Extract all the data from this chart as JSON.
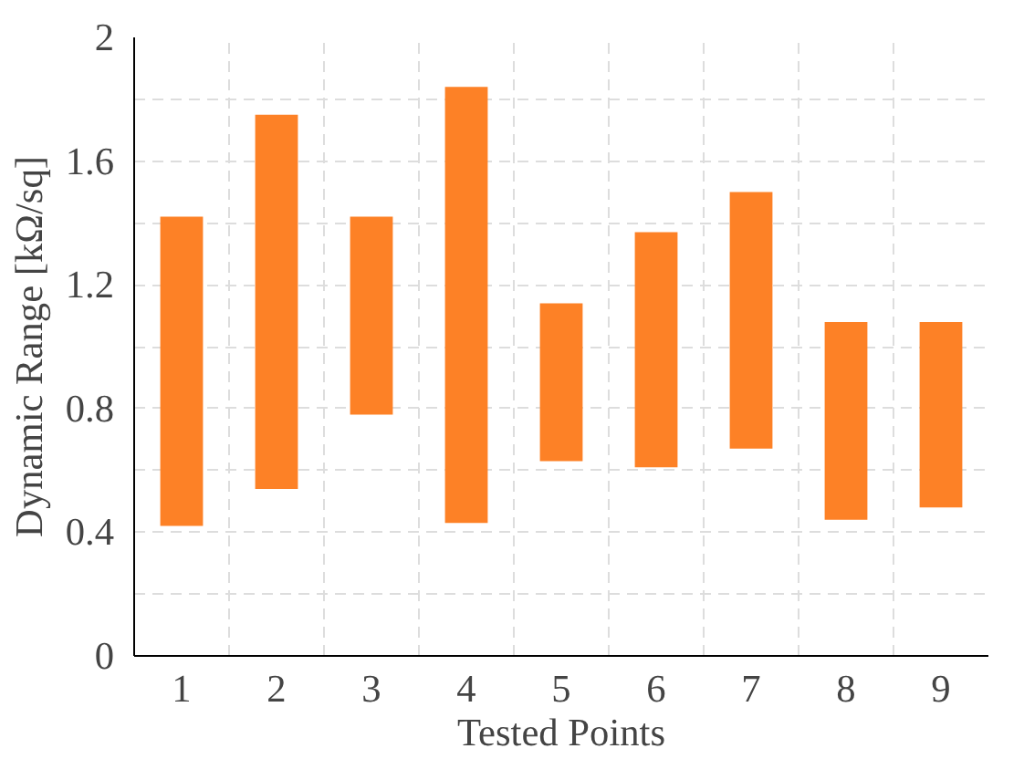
{
  "chart_data": {
    "type": "bar",
    "xlabel": "Tested Points",
    "ylabel": "Dynamic Range [kΩ/sq]",
    "categories": [
      "1",
      "2",
      "3",
      "4",
      "5",
      "6",
      "7",
      "8",
      "9"
    ],
    "base": [
      0.42,
      0.54,
      0.78,
      0.43,
      0.63,
      0.61,
      0.67,
      0.44,
      0.48
    ],
    "values": [
      1.0,
      1.21,
      0.64,
      1.41,
      0.51,
      0.76,
      0.83,
      0.64,
      0.6
    ],
    "color": "#fd8126",
    "ylim": [
      0,
      2
    ],
    "yticks": [
      0,
      {
        "value": 0.2,
        "label": null
      },
      0.4,
      {
        "value": 0.6,
        "label": null
      },
      0.8,
      {
        "value": 1.0,
        "label": null
      },
      1.2,
      {
        "value": 1.4,
        "label": null
      },
      1.6,
      {
        "value": 1.8,
        "label": null
      },
      2
    ],
    "grid": true
  }
}
